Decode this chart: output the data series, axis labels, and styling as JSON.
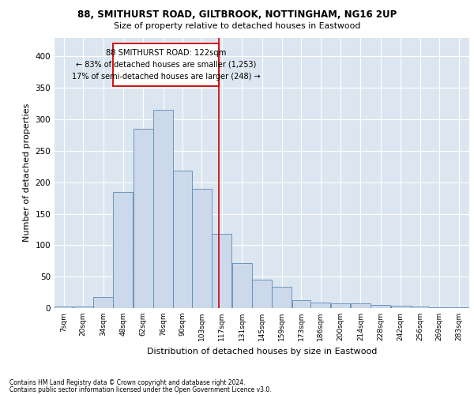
{
  "title1": "88, SMITHURST ROAD, GILTBROOK, NOTTINGHAM, NG16 2UP",
  "title2": "Size of property relative to detached houses in Eastwood",
  "xlabel": "Distribution of detached houses by size in Eastwood",
  "ylabel": "Number of detached properties",
  "footer1": "Contains HM Land Registry data © Crown copyright and database right 2024.",
  "footer2": "Contains public sector information licensed under the Open Government Licence v3.0.",
  "annotation_title": "88 SMITHURST ROAD: 122sqm",
  "annotation_line1": "← 83% of detached houses are smaller (1,253)",
  "annotation_line2": "17% of semi-detached houses are larger (248) →",
  "property_size": 122,
  "bar_left_edges": [
    7,
    20,
    34,
    48,
    62,
    76,
    90,
    103,
    117,
    131,
    145,
    159,
    173,
    186,
    200,
    214,
    228,
    242,
    256,
    269,
    283
  ],
  "bar_heights": [
    2,
    3,
    17,
    185,
    285,
    315,
    218,
    190,
    118,
    72,
    45,
    34,
    13,
    9,
    8,
    7,
    5,
    4,
    2,
    1,
    1
  ],
  "bin_widths": [
    13,
    14,
    14,
    14,
    14,
    14,
    13,
    14,
    14,
    14,
    14,
    14,
    13,
    14,
    14,
    14,
    14,
    14,
    13,
    14,
    14
  ],
  "tick_labels": [
    "7sqm",
    "20sqm",
    "34sqm",
    "48sqm",
    "62sqm",
    "76sqm",
    "90sqm",
    "103sqm",
    "117sqm",
    "131sqm",
    "145sqm",
    "159sqm",
    "173sqm",
    "186sqm",
    "200sqm",
    "214sqm",
    "228sqm",
    "242sqm",
    "256sqm",
    "269sqm",
    "283sqm"
  ],
  "yticks": [
    0,
    50,
    100,
    150,
    200,
    250,
    300,
    350,
    400
  ],
  "ylim": [
    0,
    430
  ],
  "xlim": [
    7,
    297
  ],
  "bar_facecolor": "#ccd9ea",
  "bar_edgecolor": "#5b8ab5",
  "vline_color": "#cc0000",
  "bg_color": "#dce6f0",
  "grid_color": "#ffffff",
  "box_color": "#cc0000"
}
